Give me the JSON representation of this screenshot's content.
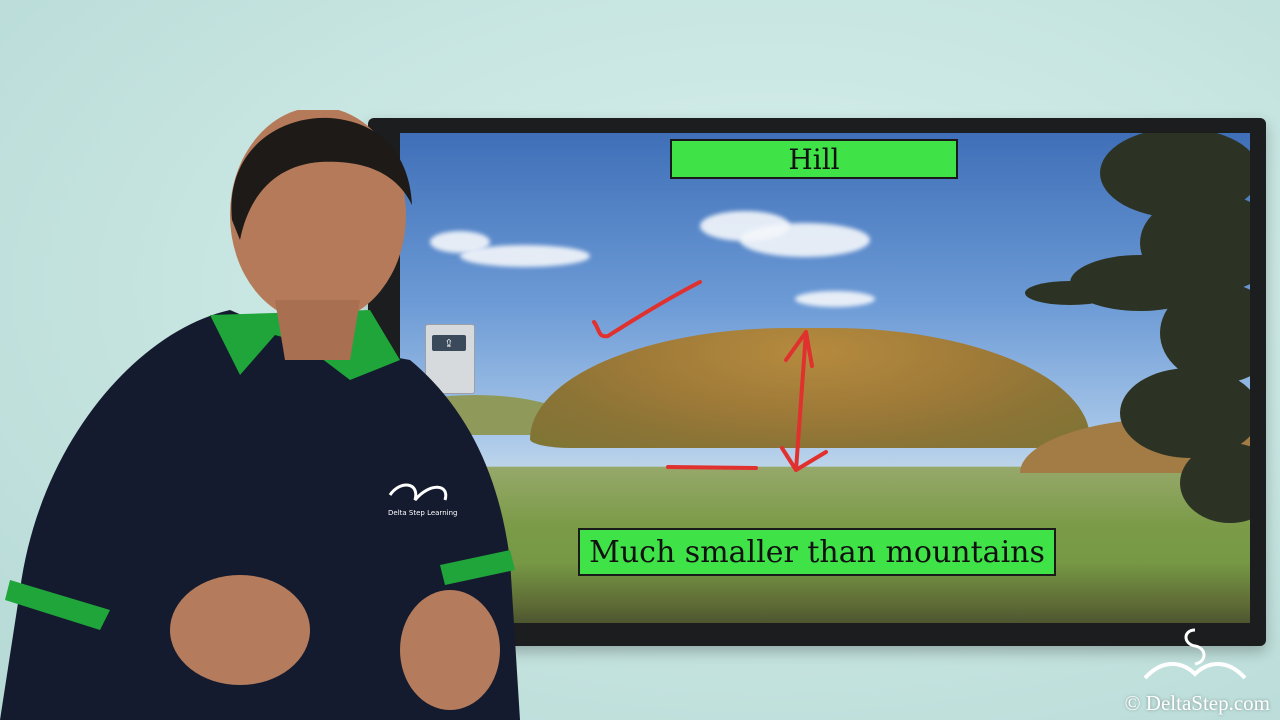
{
  "slide": {
    "title": "Hill",
    "caption": "Much smaller than mountains"
  },
  "colors": {
    "label_green": "#3fe247",
    "annotation_red": "#e0312f",
    "shirt_navy": "#151b2e",
    "collar_green": "#1fa53a"
  },
  "shirt_logo": {
    "text": "Delta Step Learning"
  },
  "watermark": {
    "text": "© DeltaStep.com"
  },
  "icons": {
    "toolbar_share": "share-icon"
  }
}
